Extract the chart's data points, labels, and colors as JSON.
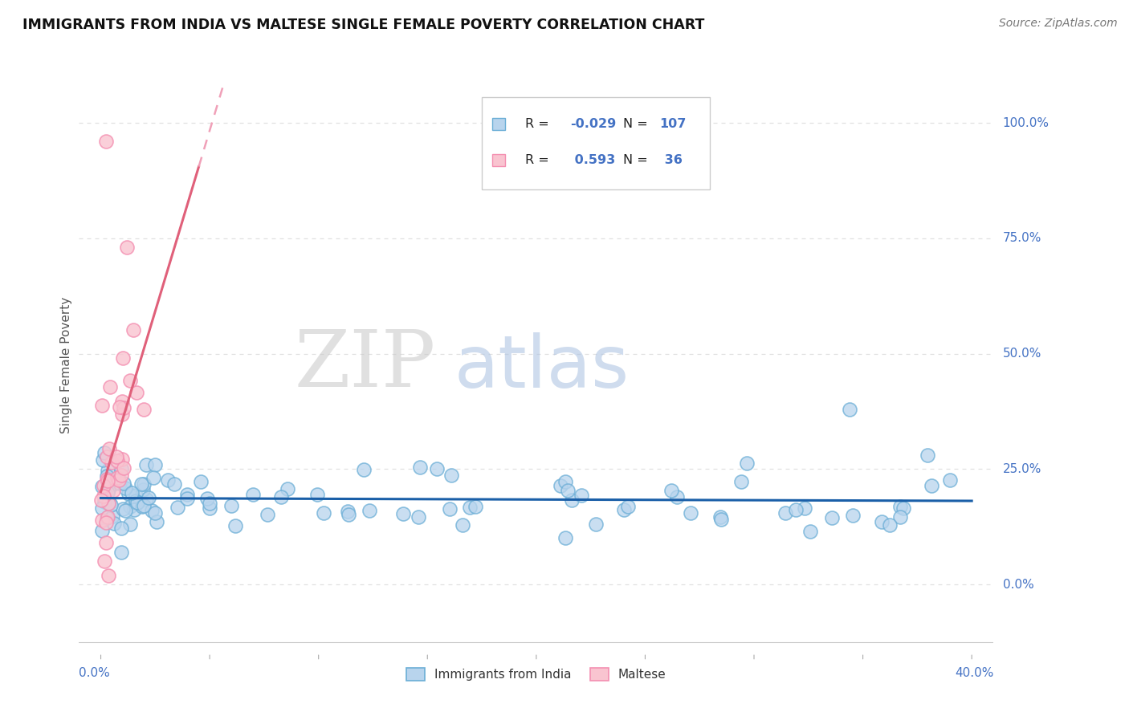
{
  "title": "IMMIGRANTS FROM INDIA VS MALTESE SINGLE FEMALE POVERTY CORRELATION CHART",
  "source": "Source: ZipAtlas.com",
  "ylabel": "Single Female Poverty",
  "ytick_vals": [
    0,
    25,
    50,
    75,
    100
  ],
  "ytick_labels": [
    "0.0%",
    "25.0%",
    "50.0%",
    "75.0%",
    "100.0%"
  ],
  "xlim": [
    -1,
    41
  ],
  "ylim": [
    -13,
    108
  ],
  "legend_r1": "-0.029",
  "legend_n1": "107",
  "legend_r2": " 0.593",
  "legend_n2": " 36",
  "blue_face": "#b8d4ed",
  "blue_edge": "#6baed6",
  "pink_face": "#f9c4d0",
  "pink_edge": "#f48fb1",
  "trend_blue_color": "#1a5fa8",
  "trend_pink_solid": "#e0607a",
  "trend_pink_dash": "#f0a0b8",
  "watermark_zip_color": "#c8c8c8",
  "watermark_atlas_color": "#a8c0e0",
  "grid_color": "#e0e0e0",
  "axis_color": "#4472c4",
  "ylabel_color": "#555555",
  "title_color": "#111111",
  "source_color": "#777777"
}
